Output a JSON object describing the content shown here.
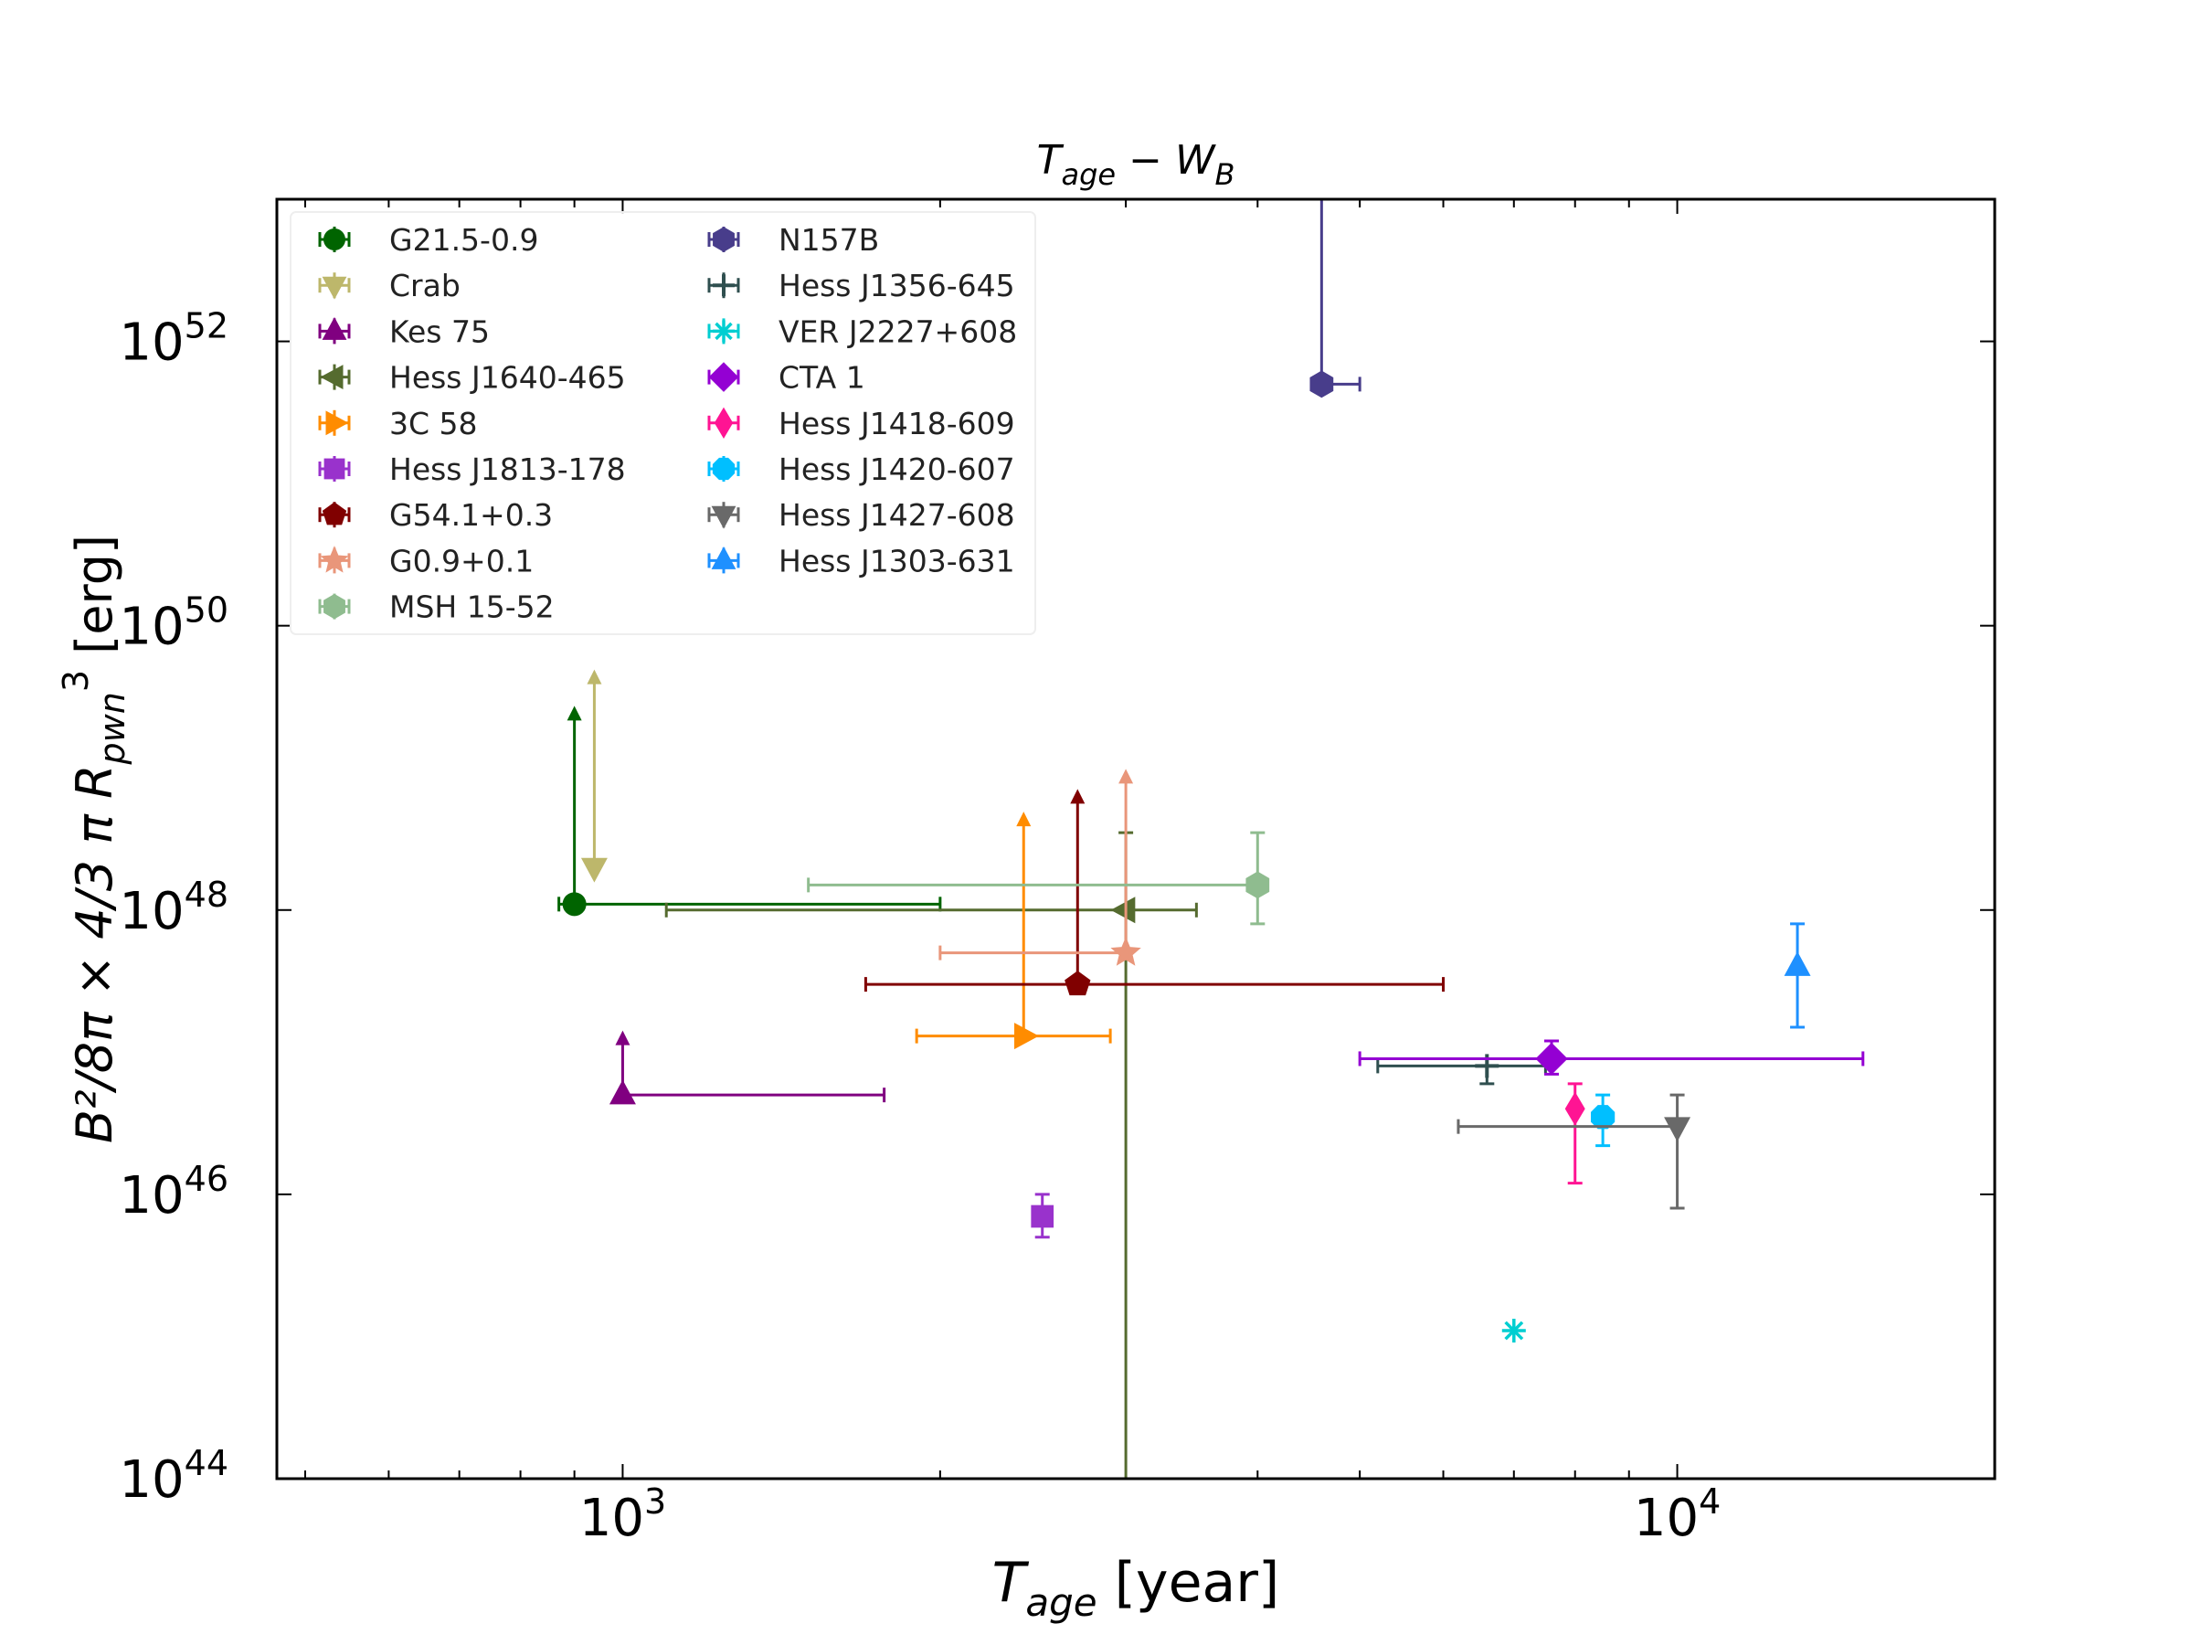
{
  "chart_data": {
    "type": "scatter",
    "title": {
      "base": "T",
      "sub": "age",
      "dash": " − ",
      "base2": "W",
      "sub2": "B"
    },
    "xlabel": {
      "base": "T",
      "sub": "age",
      "rest": " [year]"
    },
    "ylabel": {
      "pre": "B²/8π × 4/3 π R",
      "sub": "pwn",
      "sup": "3",
      "rest": " [erg]"
    },
    "xscale": "log",
    "yscale": "log",
    "xlim": [
      470,
      20000
    ],
    "ylim": [
      1e+44,
      1e+53
    ],
    "x_ticks": [
      {
        "value": 1000,
        "base": "10",
        "exp": "3"
      },
      {
        "value": 10000,
        "base": "10",
        "exp": "4"
      }
    ],
    "y_ticks": [
      {
        "value": 1e+44,
        "base": "10",
        "exp": "44"
      },
      {
        "value": 1e+46,
        "base": "10",
        "exp": "46"
      },
      {
        "value": 1e+48,
        "base": "10",
        "exp": "48"
      },
      {
        "value": 1e+50,
        "base": "10",
        "exp": "50"
      },
      {
        "value": 1e+52,
        "base": "10",
        "exp": "52"
      }
    ],
    "legend_position": "top-left",
    "series": [
      {
        "name": "G21.5-0.9",
        "color": "#006400",
        "marker": "circle",
        "x": 900,
        "y": 1.1e+48,
        "xerr": [
          870,
          2000
        ],
        "yerr_upper_limit": 2.5e+49
      },
      {
        "name": "Crab",
        "color": "#bdb76b",
        "marker": "triangle-down",
        "x": 940,
        "y": 2e+48,
        "yerr_upper_limit": 4.5e+49
      },
      {
        "name": "Kes 75",
        "color": "#800080",
        "marker": "triangle-up",
        "x": 1000,
        "y": 5e+46,
        "xerr": [
          1000,
          1770
        ],
        "yerr_upper_limit": 1.3e+47
      },
      {
        "name": "Hess J1640-465",
        "color": "#556b2f",
        "marker": "triangle-left",
        "x": 3000,
        "y": 1e+48,
        "xerr": [
          1100,
          3500
        ],
        "yerr": [
          1e+44,
          3.5e+48
        ]
      },
      {
        "name": "3C 58",
        "color": "#ff8c00",
        "marker": "triangle-right",
        "x": 2400,
        "y": 1.3e+47,
        "xerr": [
          1900,
          2900
        ],
        "yerr_upper_limit": 4.5e+48
      },
      {
        "name": "Hess J1813-178",
        "color": "#9932cc",
        "marker": "square",
        "x": 2500,
        "y": 7e+45,
        "yerr": [
          5e+45,
          1e+46
        ]
      },
      {
        "name": "G54.1+0.3",
        "color": "#800000",
        "marker": "pentagon",
        "x": 2700,
        "y": 3e+47,
        "xerr": [
          1700,
          6000
        ],
        "yerr_upper_limit": 6.5e+48
      },
      {
        "name": "G0.9+0.1",
        "color": "#e9967a",
        "marker": "star",
        "x": 3000,
        "y": 5e+47,
        "xerr": [
          2000,
          3000
        ],
        "yerr_upper_limit": 9e+48
      },
      {
        "name": "MSH 15-52",
        "color": "#8fbc8f",
        "marker": "hexagon",
        "x": 4000,
        "y": 1.5e+48,
        "xerr": [
          1500,
          4000
        ],
        "yerr": [
          8e+47,
          3.5e+48
        ]
      },
      {
        "name": "N157B",
        "color": "#483d8b",
        "marker": "hexagon",
        "x": 4600,
        "y": 5e+51,
        "xerr": [
          4600,
          5000
        ],
        "yerr_upper_limit": 3e+53
      },
      {
        "name": "Hess J1356-645",
        "color": "#2f4f4f",
        "marker": "plus",
        "x": 6600,
        "y": 8e+46,
        "xerr": [
          5200,
          7500
        ],
        "yerr": [
          6e+46,
          9e+46
        ]
      },
      {
        "name": "VER J2227+608",
        "color": "#00ced1",
        "marker": "asterisk",
        "x": 7000,
        "y": 1.1e+45
      },
      {
        "name": "CTA 1",
        "color": "#9400d3",
        "marker": "diamond",
        "x": 7600,
        "y": 9e+46,
        "xerr": [
          5000,
          15000
        ],
        "yerr": [
          7e+46,
          1.2e+47
        ]
      },
      {
        "name": "Hess J1418-609",
        "color": "#ff1493",
        "marker": "thin-diamond",
        "x": 8000,
        "y": 4e+46,
        "xerr": [
          8000,
          8000
        ],
        "yerr": [
          1.2e+46,
          6e+46
        ]
      },
      {
        "name": "Hess J1420-607",
        "color": "#00bfff",
        "marker": "octagon",
        "x": 8500,
        "y": 3.5e+46,
        "xerr": [
          8500,
          8500
        ],
        "yerr": [
          2.2e+46,
          5e+46
        ]
      },
      {
        "name": "Hess J1427-608",
        "color": "#696969",
        "marker": "triangle-down",
        "x": 10000,
        "y": 3e+46,
        "xerr": [
          6200,
          10000
        ],
        "yerr": [
          8e+45,
          5e+46
        ]
      },
      {
        "name": "Hess J1303-631",
        "color": "#1e90ff",
        "marker": "triangle-up",
        "x": 13000,
        "y": 4e+47,
        "xerr": [
          13000,
          13000
        ],
        "yerr": [
          1.5e+47,
          8e+47
        ]
      }
    ]
  }
}
